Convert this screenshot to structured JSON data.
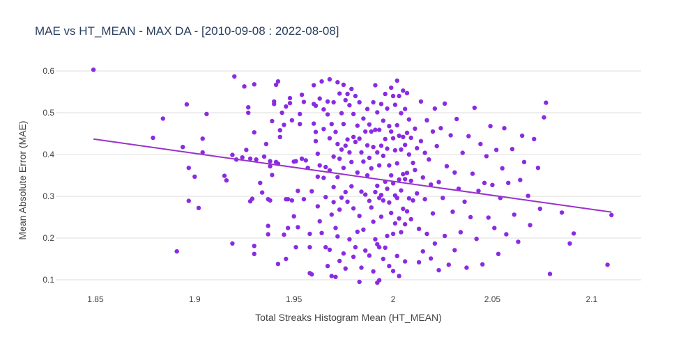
{
  "chart_data": {
    "type": "scatter",
    "title": "MAE vs HT_MEAN - MAX DA - [2010-09-08 : 2022-08-08]",
    "xlabel": "Total Streaks Histogram Mean (HT_MEAN)",
    "ylabel": "Mean Absolute Error (MAE)",
    "xlim": [
      1.83,
      2.125
    ],
    "ylim": [
      0.07,
      0.62
    ],
    "xticks": [
      1.85,
      1.9,
      1.95,
      2.0,
      2.05,
      2.1
    ],
    "xtick_labels": [
      "1.85",
      "1.9",
      "1.95",
      "2",
      "2.05",
      "2.1"
    ],
    "yticks": [
      0.1,
      0.2,
      0.3,
      0.4,
      0.5,
      0.6
    ],
    "ytick_labels": [
      "0.1",
      "0.2",
      "0.3",
      "0.4",
      "0.5",
      "0.6"
    ],
    "grid": "horizontal",
    "marker_color": "#8a2be2",
    "line_color": "#9932cc",
    "trendline": {
      "x": [
        1.849,
        2.11
      ],
      "y": [
        0.437,
        0.262
      ]
    },
    "points": [
      [
        1.849,
        0.603
      ],
      [
        1.879,
        0.44
      ],
      [
        1.884,
        0.486
      ],
      [
        1.891,
        0.168
      ],
      [
        1.894,
        0.418
      ],
      [
        1.896,
        0.52
      ],
      [
        1.897,
        0.368
      ],
      [
        1.897,
        0.289
      ],
      [
        1.9,
        0.347
      ],
      [
        1.902,
        0.272
      ],
      [
        1.904,
        0.438
      ],
      [
        1.904,
        0.405
      ],
      [
        1.906,
        0.497
      ],
      [
        1.915,
        0.349
      ],
      [
        1.916,
        0.338
      ],
      [
        1.919,
        0.399
      ],
      [
        1.919,
        0.187
      ],
      [
        1.92,
        0.587
      ],
      [
        1.921,
        0.388
      ],
      [
        1.924,
        0.393
      ],
      [
        1.925,
        0.563
      ],
      [
        1.926,
        0.411
      ],
      [
        1.927,
        0.513
      ],
      [
        1.927,
        0.5
      ],
      [
        1.928,
        0.288
      ],
      [
        1.928,
        0.39
      ],
      [
        1.929,
        0.294
      ],
      [
        1.93,
        0.453
      ],
      [
        1.93,
        0.181
      ],
      [
        1.93,
        0.162
      ],
      [
        1.93,
        0.568
      ],
      [
        1.931,
        0.388
      ],
      [
        1.933,
        0.332
      ],
      [
        1.934,
        0.309
      ],
      [
        1.935,
        0.395
      ],
      [
        1.936,
        0.425
      ],
      [
        1.937,
        0.293
      ],
      [
        1.937,
        0.229
      ],
      [
        1.937,
        0.209
      ],
      [
        1.938,
        0.372
      ],
      [
        1.938,
        0.384
      ],
      [
        1.938,
        0.29
      ],
      [
        1.939,
        0.48
      ],
      [
        1.939,
        0.351
      ],
      [
        1.94,
        0.521
      ],
      [
        1.94,
        0.527
      ],
      [
        1.941,
        0.382
      ],
      [
        1.941,
        0.567
      ],
      [
        1.942,
        0.575
      ],
      [
        1.942,
        0.378
      ],
      [
        1.942,
        0.138
      ],
      [
        1.943,
        0.442
      ],
      [
        1.943,
        0.458
      ],
      [
        1.944,
        0.5
      ],
      [
        1.945,
        0.471
      ],
      [
        1.945,
        0.208
      ],
      [
        1.946,
        0.293
      ],
      [
        1.946,
        0.15
      ],
      [
        1.946,
        0.515
      ],
      [
        1.947,
        0.293
      ],
      [
        1.947,
        0.224
      ],
      [
        1.948,
        0.535
      ],
      [
        1.948,
        0.523
      ],
      [
        1.949,
        0.482
      ],
      [
        1.949,
        0.29
      ],
      [
        1.95,
        0.383
      ],
      [
        1.95,
        0.252
      ],
      [
        1.951,
        0.384
      ],
      [
        1.951,
        0.178
      ],
      [
        1.952,
        0.226
      ],
      [
        1.952,
        0.313
      ],
      [
        1.953,
        0.497
      ],
      [
        1.953,
        0.473
      ],
      [
        1.954,
        0.39
      ],
      [
        1.954,
        0.543
      ],
      [
        1.955,
        0.526
      ],
      [
        1.955,
        0.293
      ],
      [
        1.956,
        0.386
      ],
      [
        1.957,
        0.368
      ],
      [
        1.958,
        0.21
      ],
      [
        1.958,
        0.178
      ],
      [
        1.958,
        0.116
      ],
      [
        1.959,
        0.113
      ],
      [
        1.959,
        0.312
      ],
      [
        1.96,
        0.566
      ],
      [
        1.96,
        0.521
      ],
      [
        1.96,
        0.474
      ],
      [
        1.961,
        0.454
      ],
      [
        1.961,
        0.432
      ],
      [
        1.961,
        0.517
      ],
      [
        1.962,
        0.402
      ],
      [
        1.962,
        0.347
      ],
      [
        1.962,
        0.276
      ],
      [
        1.963,
        0.534
      ],
      [
        1.963,
        0.374
      ],
      [
        1.963,
        0.24
      ],
      [
        1.964,
        0.212
      ],
      [
        1.964,
        0.575
      ],
      [
        1.965,
        0.508
      ],
      [
        1.965,
        0.461
      ],
      [
        1.965,
        0.344
      ],
      [
        1.966,
        0.37
      ],
      [
        1.966,
        0.298
      ],
      [
        1.966,
        0.178
      ],
      [
        1.967,
        0.527
      ],
      [
        1.967,
        0.496
      ],
      [
        1.967,
        0.133
      ],
      [
        1.968,
        0.58
      ],
      [
        1.968,
        0.439
      ],
      [
        1.968,
        0.362
      ],
      [
        1.968,
        0.172
      ],
      [
        1.969,
        0.473
      ],
      [
        1.969,
        0.256
      ],
      [
        1.969,
        0.109
      ],
      [
        1.97,
        0.525
      ],
      [
        1.97,
        0.395
      ],
      [
        1.97,
        0.322
      ],
      [
        1.97,
        0.286
      ],
      [
        1.971,
        0.454
      ],
      [
        1.971,
        0.224
      ],
      [
        1.971,
        0.107
      ],
      [
        1.972,
        0.573
      ],
      [
        1.972,
        0.425
      ],
      [
        1.972,
        0.346
      ],
      [
        1.972,
        0.204
      ],
      [
        1.973,
        0.546
      ],
      [
        1.973,
        0.39
      ],
      [
        1.973,
        0.268
      ],
      [
        1.973,
        0.145
      ],
      [
        1.974,
        0.499
      ],
      [
        1.974,
        0.412
      ],
      [
        1.974,
        0.297
      ],
      [
        1.975,
        0.567
      ],
      [
        1.975,
        0.473
      ],
      [
        1.975,
        0.368
      ],
      [
        1.975,
        0.163
      ],
      [
        1.976,
        0.53
      ],
      [
        1.976,
        0.421
      ],
      [
        1.976,
        0.31
      ],
      [
        1.976,
        0.127
      ],
      [
        1.977,
        0.545
      ],
      [
        1.977,
        0.436
      ],
      [
        1.977,
        0.287
      ],
      [
        1.978,
        0.518
      ],
      [
        1.978,
        0.405
      ],
      [
        1.978,
        0.197
      ],
      [
        1.979,
        0.557
      ],
      [
        1.979,
        0.382
      ],
      [
        1.979,
        0.324
      ],
      [
        1.98,
        0.497
      ],
      [
        1.98,
        0.442
      ],
      [
        1.98,
        0.271
      ],
      [
        1.98,
        0.155
      ],
      [
        1.981,
        0.54
      ],
      [
        1.981,
        0.43
      ],
      [
        1.981,
        0.178
      ],
      [
        1.982,
        0.469
      ],
      [
        1.982,
        0.357
      ],
      [
        1.982,
        0.215
      ],
      [
        1.983,
        0.525
      ],
      [
        1.983,
        0.438
      ],
      [
        1.983,
        0.253
      ],
      [
        1.983,
        0.095
      ],
      [
        1.984,
        0.405
      ],
      [
        1.984,
        0.311
      ],
      [
        1.984,
        0.129
      ],
      [
        1.985,
        0.486
      ],
      [
        1.985,
        0.383
      ],
      [
        1.985,
        0.22
      ],
      [
        1.986,
        0.455
      ],
      [
        1.986,
        0.304
      ],
      [
        1.986,
        0.17
      ],
      [
        1.987,
        0.509
      ],
      [
        1.987,
        0.422
      ],
      [
        1.987,
        0.35
      ],
      [
        1.988,
        0.472
      ],
      [
        1.988,
        0.392
      ],
      [
        1.988,
        0.289
      ],
      [
        1.988,
        0.158
      ],
      [
        1.989,
        0.455
      ],
      [
        1.989,
        0.367
      ],
      [
        1.989,
        0.273
      ],
      [
        1.99,
        0.525
      ],
      [
        1.99,
        0.418
      ],
      [
        1.99,
        0.239
      ],
      [
        1.99,
        0.12
      ],
      [
        1.991,
        0.566
      ],
      [
        1.991,
        0.459
      ],
      [
        1.991,
        0.31
      ],
      [
        1.991,
        0.197
      ],
      [
        1.992,
        0.501
      ],
      [
        1.992,
        0.405
      ],
      [
        1.992,
        0.325
      ],
      [
        1.992,
        0.185
      ],
      [
        1.992,
        0.093
      ],
      [
        1.993,
        0.459
      ],
      [
        1.993,
        0.374
      ],
      [
        1.993,
        0.296
      ],
      [
        1.993,
        0.178
      ],
      [
        1.993,
        0.099
      ],
      [
        1.994,
        0.521
      ],
      [
        1.994,
        0.421
      ],
      [
        1.994,
        0.303
      ],
      [
        1.994,
        0.251
      ],
      [
        1.995,
        0.481
      ],
      [
        1.995,
        0.397
      ],
      [
        1.995,
        0.29
      ],
      [
        1.995,
        0.15
      ],
      [
        1.996,
        0.545
      ],
      [
        1.996,
        0.437
      ],
      [
        1.996,
        0.335
      ],
      [
        1.996,
        0.177
      ],
      [
        1.997,
        0.51
      ],
      [
        1.997,
        0.414
      ],
      [
        1.997,
        0.318
      ],
      [
        1.997,
        0.205
      ],
      [
        1.998,
        0.468
      ],
      [
        1.998,
        0.374
      ],
      [
        1.998,
        0.285
      ],
      [
        1.998,
        0.133
      ],
      [
        1.999,
        0.56
      ],
      [
        1.999,
        0.455
      ],
      [
        1.999,
        0.35
      ],
      [
        1.999,
        0.26
      ],
      [
        2.0,
        0.54
      ],
      [
        2.0,
        0.439
      ],
      [
        2.0,
        0.331
      ],
      [
        2.0,
        0.21
      ],
      [
        2.0,
        0.121
      ],
      [
        2.001,
        0.519
      ],
      [
        2.001,
        0.41
      ],
      [
        2.001,
        0.302
      ],
      [
        2.001,
        0.235
      ],
      [
        2.002,
        0.577
      ],
      [
        2.002,
        0.47
      ],
      [
        2.002,
        0.379
      ],
      [
        2.002,
        0.296
      ],
      [
        2.002,
        0.157
      ],
      [
        2.003,
        0.54
      ],
      [
        2.003,
        0.445
      ],
      [
        2.003,
        0.34
      ],
      [
        2.003,
        0.247
      ],
      [
        2.003,
        0.109
      ],
      [
        2.004,
        0.499
      ],
      [
        2.004,
        0.412
      ],
      [
        2.004,
        0.314
      ],
      [
        2.004,
        0.214
      ],
      [
        2.005,
        0.553
      ],
      [
        2.005,
        0.442
      ],
      [
        2.005,
        0.353
      ],
      [
        2.005,
        0.27
      ],
      [
        2.006,
        0.509
      ],
      [
        2.006,
        0.423
      ],
      [
        2.006,
        0.341
      ],
      [
        2.006,
        0.233
      ],
      [
        2.006,
        0.144
      ],
      [
        2.007,
        0.547
      ],
      [
        2.007,
        0.452
      ],
      [
        2.007,
        0.356
      ],
      [
        2.007,
        0.264
      ],
      [
        2.008,
        0.484
      ],
      [
        2.008,
        0.4
      ],
      [
        2.008,
        0.295
      ],
      [
        2.009,
        0.44
      ],
      [
        2.009,
        0.337
      ],
      [
        2.009,
        0.245
      ],
      [
        2.01,
        0.38
      ],
      [
        2.01,
        0.29
      ],
      [
        2.011,
        0.462
      ],
      [
        2.011,
        0.363
      ],
      [
        2.012,
        0.415
      ],
      [
        2.012,
        0.307
      ],
      [
        2.013,
        0.222
      ],
      [
        2.013,
        0.142
      ],
      [
        2.014,
        0.527
      ],
      [
        2.014,
        0.432
      ],
      [
        2.015,
        0.345
      ],
      [
        2.015,
        0.168
      ],
      [
        2.016,
        0.404
      ],
      [
        2.016,
        0.293
      ],
      [
        2.017,
        0.482
      ],
      [
        2.017,
        0.21
      ],
      [
        2.018,
        0.388
      ],
      [
        2.019,
        0.328
      ],
      [
        2.019,
        0.151
      ],
      [
        2.02,
        0.455
      ],
      [
        2.02,
        0.259
      ],
      [
        2.021,
        0.51
      ],
      [
        2.021,
        0.187
      ],
      [
        2.022,
        0.42
      ],
      [
        2.023,
        0.334
      ],
      [
        2.023,
        0.123
      ],
      [
        2.024,
        0.463
      ],
      [
        2.025,
        0.296
      ],
      [
        2.026,
        0.522
      ],
      [
        2.026,
        0.205
      ],
      [
        2.027,
        0.372
      ],
      [
        2.028,
        0.136
      ],
      [
        2.029,
        0.446
      ],
      [
        2.03,
        0.263
      ],
      [
        2.031,
        0.357
      ],
      [
        2.031,
        0.171
      ],
      [
        2.032,
        0.485
      ],
      [
        2.033,
        0.318
      ],
      [
        2.034,
        0.214
      ],
      [
        2.035,
        0.404
      ],
      [
        2.036,
        0.287
      ],
      [
        2.037,
        0.129
      ],
      [
        2.038,
        0.444
      ],
      [
        2.039,
        0.25
      ],
      [
        2.04,
        0.354
      ],
      [
        2.041,
        0.512
      ],
      [
        2.042,
        0.198
      ],
      [
        2.043,
        0.313
      ],
      [
        2.044,
        0.425
      ],
      [
        2.045,
        0.137
      ],
      [
        2.046,
        0.332
      ],
      [
        2.047,
        0.396
      ],
      [
        2.048,
        0.249
      ],
      [
        2.049,
        0.468
      ],
      [
        2.05,
        0.327
      ],
      [
        2.051,
        0.224
      ],
      [
        2.052,
        0.411
      ],
      [
        2.053,
        0.162
      ],
      [
        2.054,
        0.296
      ],
      [
        2.055,
        0.367
      ],
      [
        2.056,
        0.463
      ],
      [
        2.057,
        0.209
      ],
      [
        2.058,
        0.332
      ],
      [
        2.06,
        0.413
      ],
      [
        2.061,
        0.256
      ],
      [
        2.063,
        0.191
      ],
      [
        2.064,
        0.339
      ],
      [
        2.065,
        0.445
      ],
      [
        2.066,
        0.382
      ],
      [
        2.068,
        0.301
      ],
      [
        2.069,
        0.231
      ],
      [
        2.071,
        0.437
      ],
      [
        2.073,
        0.368
      ],
      [
        2.074,
        0.27
      ],
      [
        2.076,
        0.489
      ],
      [
        2.077,
        0.524
      ],
      [
        2.079,
        0.114
      ],
      [
        2.085,
        0.261
      ],
      [
        2.089,
        0.187
      ],
      [
        2.091,
        0.211
      ],
      [
        2.108,
        0.136
      ],
      [
        2.11,
        0.255
      ]
    ]
  }
}
